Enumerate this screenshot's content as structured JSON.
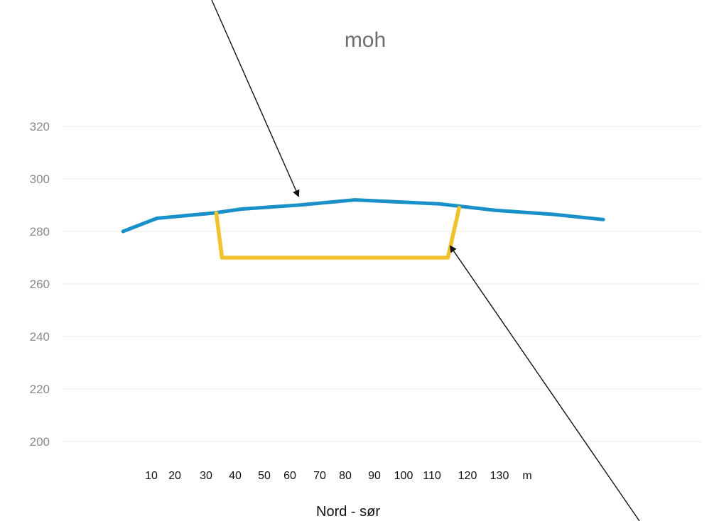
{
  "chart_data": {
    "type": "line",
    "title": "moh",
    "xlabel": "Nord  - sør",
    "ylabel": "",
    "ylim": [
      200,
      320
    ],
    "yticks": [
      200,
      220,
      240,
      260,
      280,
      300,
      320
    ],
    "x_tick_text": [
      "10",
      "20",
      "30",
      "40",
      "50",
      "60",
      "70",
      "80",
      "90",
      "100",
      "110",
      "120",
      "130",
      "m"
    ],
    "grid": true,
    "legend": "none",
    "colors": {
      "terrain": "#1a90c8",
      "cut": "#f2c12e",
      "arrows": "#111111",
      "grid": "#eeeede"
    },
    "series": [
      {
        "color_key": "terrain",
        "x": [
          -2,
          10,
          30,
          40,
          60,
          80,
          110,
          130,
          150,
          168
        ],
        "y": [
          280,
          285,
          287,
          288.5,
          290,
          292,
          290.5,
          288,
          286.5,
          284.5
        ]
      },
      {
        "color_key": "cut",
        "x": [
          31,
          33,
          113,
          117
        ],
        "y": [
          287,
          270,
          270,
          289
        ]
      }
    ],
    "annotations": [
      {
        "type": "arrow",
        "label": "",
        "points_to": "terrain line near x=60"
      },
      {
        "type": "arrow",
        "label": "",
        "points_to": "cut wall near x=113"
      }
    ]
  }
}
